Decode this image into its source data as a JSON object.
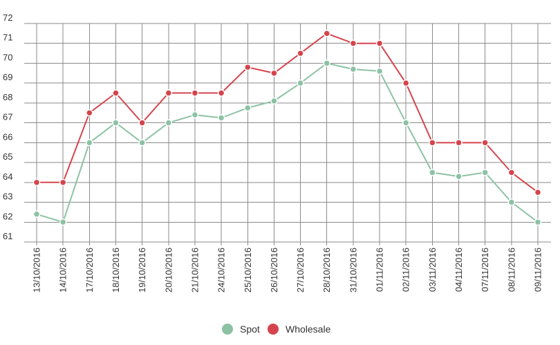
{
  "chart_data": {
    "type": "line",
    "title": "",
    "xlabel": "",
    "ylabel": "",
    "ylim": [
      61,
      72
    ],
    "yticks": [
      "61",
      "62",
      "63",
      "64",
      "65",
      "66",
      "67",
      "68",
      "69",
      "70",
      "71",
      "72"
    ],
    "grid": true,
    "legend_position": "bottom-center",
    "categories": [
      "13/10/2016",
      "14/10/2016",
      "17/10/2016",
      "18/10/2016",
      "19/10/2016",
      "20/10/2016",
      "21/10/2016",
      "24/10/2016",
      "25/10/2016",
      "26/10/2016",
      "27/10/2016",
      "28/10/2016",
      "31/10/2016",
      "01/11/2016",
      "02/11/2016",
      "03/11/2016",
      "04/11/2016",
      "07/11/2016",
      "08/11/2016",
      "09/11/2016"
    ],
    "series": [
      {
        "name": "Spot",
        "color": "#8cc2a4",
        "values": [
          62.4,
          62.0,
          66.0,
          67.0,
          66.0,
          67.0,
          67.4,
          67.25,
          67.75,
          68.1,
          69.0,
          70.0,
          69.7,
          69.6,
          67.0,
          64.5,
          64.3,
          64.5,
          63.0,
          62.0
        ]
      },
      {
        "name": "Wholesale",
        "color": "#d5444c",
        "values": [
          64.0,
          64.0,
          67.5,
          68.5,
          67.0,
          68.5,
          68.5,
          68.5,
          69.8,
          69.5,
          70.5,
          71.5,
          71.0,
          71.0,
          69.0,
          66.0,
          66.0,
          66.0,
          64.5,
          63.5
        ]
      }
    ]
  }
}
